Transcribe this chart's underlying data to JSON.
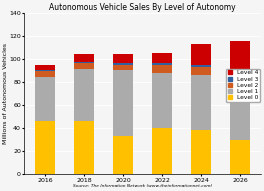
{
  "title": "Autonomous Vehicle Sales By Level of Autonomy",
  "xlabel": "Source: The Information Network (www.theinformationnet.com)",
  "ylabel": "Millions of Autonomous Vehicles",
  "years": [
    2016,
    2018,
    2020,
    2022,
    2024,
    2026
  ],
  "levels": [
    "Level 0",
    "Level 1",
    "Level 2",
    "Level 3",
    "Level 4"
  ],
  "colors": [
    "#FFC000",
    "#ABABAB",
    "#D05B20",
    "#3060A0",
    "#CC0000"
  ],
  "data": {
    "Level 0": [
      46,
      46,
      33,
      40,
      38,
      30
    ],
    "Level 1": [
      38,
      45,
      57,
      48,
      48,
      50
    ],
    "Level 2": [
      5,
      5,
      5,
      7,
      7,
      8
    ],
    "Level 3": [
      1,
      1,
      1,
      1,
      2,
      3
    ],
    "Level 4": [
      5,
      7,
      8,
      9,
      18,
      24
    ]
  },
  "ylim": [
    0,
    140
  ],
  "yticks": [
    0,
    20,
    40,
    60,
    80,
    100,
    120,
    140
  ],
  "background_color": "#f5f5f5",
  "title_fontsize": 5.5,
  "tick_fontsize": 4.5,
  "legend_fontsize": 4.2,
  "ylabel_fontsize": 4.5
}
